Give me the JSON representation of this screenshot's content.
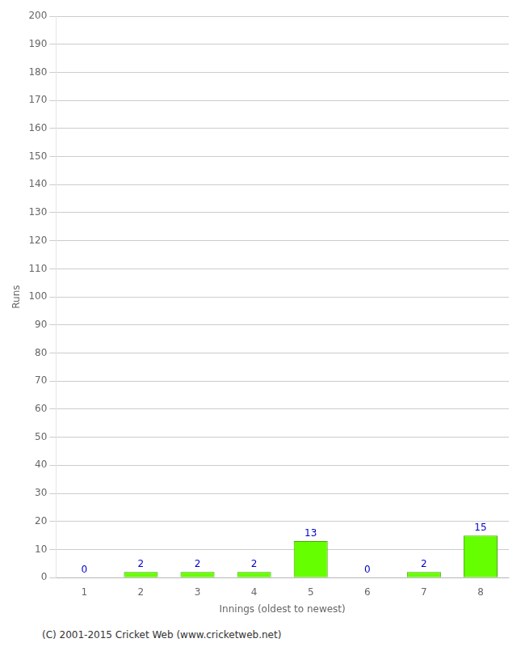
{
  "chart_data": {
    "type": "bar",
    "xlabel": "Innings (oldest to newest)",
    "ylabel": "Runs",
    "categories": [
      "1",
      "2",
      "3",
      "4",
      "5",
      "6",
      "7",
      "8"
    ],
    "values": [
      0,
      2,
      2,
      2,
      13,
      0,
      2,
      15
    ],
    "color": "#66ff00",
    "ylim": [
      0,
      200
    ],
    "yticks": [
      0,
      10,
      20,
      30,
      40,
      50,
      60,
      70,
      80,
      90,
      100,
      110,
      120,
      130,
      140,
      150,
      160,
      170,
      180,
      190,
      200
    ],
    "grid": true,
    "data_labels": true,
    "annotations": [
      "(C) 2001-2015 Cricket Web (www.cricketweb.net)"
    ]
  }
}
